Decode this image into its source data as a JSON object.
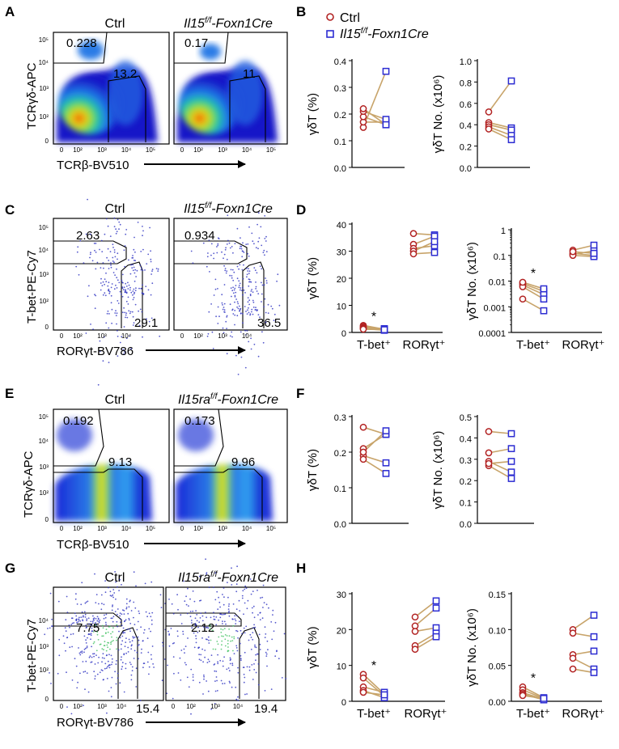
{
  "panels": {
    "A": {
      "letter": "A"
    },
    "B": {
      "letter": "B"
    },
    "C": {
      "letter": "C"
    },
    "D": {
      "letter": "D"
    },
    "E": {
      "letter": "E"
    },
    "F": {
      "letter": "F"
    },
    "G": {
      "letter": "G"
    },
    "H": {
      "letter": "H"
    }
  },
  "legend": {
    "ctrl": "Ctrl",
    "ko_il15_base": "Il15",
    "ko_il15_sup": "f/f",
    "ko_il15_suffix": "-Foxn1Cre",
    "ctrl_color": "#b22222",
    "ko_color": "#2c2cd2"
  },
  "flow": {
    "ctrl_title": "Ctrl",
    "ko15_base": "Il15",
    "ko15_sup": "f/f",
    "ko15_suffix": "-Foxn1Cre",
    "ko15ra_base": "Il15ra",
    "ko15ra_sup": "f/f",
    "ko15ra_suffix": "-Foxn1Cre",
    "ticks": [
      "0",
      "10²",
      "10³",
      "10⁴",
      "10⁵"
    ],
    "tcrgd_label": "TCRγδ-APC",
    "tcrb_label": "TCRβ-BV510",
    "tbet_label": "T-bet-PE-Cy7",
    "rorgt_label": "RORγt-BV786",
    "A_ctrl_gd": "0.228",
    "A_ctrl_b": "13.2",
    "A_ko_gd": "0.17",
    "A_ko_b": "11",
    "C_ctrl_tbet": "2.63",
    "C_ctrl_ror": "29.1",
    "C_ko_tbet": "0.934",
    "C_ko_ror": "36.5",
    "E_ctrl_gd": "0.192",
    "E_ctrl_b": "9.13",
    "E_ko_gd": "0.173",
    "E_ko_b": "9.96",
    "G_ctrl_tbet": "7.75",
    "G_ctrl_ror": "15.4",
    "G_ko_tbet": "2.12",
    "G_ko_ror": "19.4"
  },
  "chart_data": [
    {
      "id": "B1",
      "type": "scatter",
      "ylabel": "γδT (%)",
      "ylim": [
        0,
        0.4
      ],
      "yticks": [
        "0.0",
        "0.1",
        "0.2",
        "0.3",
        "0.4"
      ],
      "pairs": [
        [
          0.15,
          0.36
        ],
        [
          0.17,
          0.17
        ],
        [
          0.19,
          0.16
        ],
        [
          0.21,
          0.18
        ],
        [
          0.22,
          0.16
        ]
      ]
    },
    {
      "id": "B2",
      "type": "scatter",
      "ylabel": "γδT No. (x10⁶)",
      "ylim": [
        0,
        1.0
      ],
      "yticks": [
        "0.0",
        "0.2",
        "0.4",
        "0.6",
        "0.8",
        "1.0"
      ],
      "pairs": [
        [
          0.52,
          0.81
        ],
        [
          0.42,
          0.37
        ],
        [
          0.4,
          0.35
        ],
        [
          0.38,
          0.3
        ],
        [
          0.36,
          0.26
        ]
      ]
    },
    {
      "id": "D1",
      "type": "scatter",
      "ylabel": "γδT (%)",
      "ylim": [
        0,
        40
      ],
      "yticks": [
        "0",
        "10",
        "20",
        "30",
        "40"
      ],
      "categories": [
        "T-bet⁺",
        "RORγt⁺"
      ],
      "annotation": "*",
      "groups": [
        {
          "pairs": [
            [
              2.6,
              1.2
            ],
            [
              2.2,
              0.9
            ],
            [
              1.8,
              1.4
            ],
            [
              1.5,
              0.8
            ],
            [
              1.2,
              1.0
            ]
          ]
        },
        {
          "pairs": [
            [
              36.5,
              36.0
            ],
            [
              32.5,
              35.5
            ],
            [
              31.0,
              32.0
            ],
            [
              30.0,
              33.5
            ],
            [
              29.0,
              29.5
            ]
          ]
        }
      ]
    },
    {
      "id": "D2",
      "type": "scatter",
      "ylabel": "γδT No. (x10⁶)",
      "yscale": "log",
      "ylim": [
        0.0001,
        1
      ],
      "yticks": [
        "0.0001",
        "0.001",
        "0.01",
        "0.1",
        "1"
      ],
      "categories": [
        "T-bet⁺",
        "RORγt⁺"
      ],
      "annotation": "*",
      "groups": [
        {
          "pairs": [
            [
              0.008,
              0.004
            ],
            [
              0.007,
              0.003
            ],
            [
              0.006,
              0.002
            ],
            [
              0.002,
              0.0007
            ],
            [
              0.009,
              0.005
            ]
          ]
        },
        {
          "pairs": [
            [
              0.16,
              0.25
            ],
            [
              0.12,
              0.1
            ],
            [
              0.11,
              0.15
            ],
            [
              0.1,
              0.09
            ],
            [
              0.14,
              0.12
            ]
          ]
        }
      ]
    },
    {
      "id": "F1",
      "type": "scatter",
      "ylabel": "γδT (%)",
      "ylim": [
        0,
        0.3
      ],
      "yticks": [
        "0.0",
        "0.1",
        "0.2",
        "0.3"
      ],
      "pairs": [
        [
          0.27,
          0.25
        ],
        [
          0.21,
          0.25
        ],
        [
          0.19,
          0.17
        ],
        [
          0.18,
          0.14
        ],
        [
          0.2,
          0.26
        ]
      ]
    },
    {
      "id": "F2",
      "type": "scatter",
      "ylabel": "γδT No. (x10⁶)",
      "ylim": [
        0,
        0.5
      ],
      "yticks": [
        "0.0",
        "0.1",
        "0.2",
        "0.3",
        "0.4",
        "0.5"
      ],
      "pairs": [
        [
          0.43,
          0.42
        ],
        [
          0.33,
          0.35
        ],
        [
          0.29,
          0.24
        ],
        [
          0.27,
          0.21
        ],
        [
          0.28,
          0.29
        ]
      ]
    },
    {
      "id": "H1",
      "type": "scatter",
      "ylabel": "γδT (%)",
      "ylim": [
        0,
        30
      ],
      "yticks": [
        "0",
        "10",
        "20",
        "30"
      ],
      "categories": [
        "T-bet⁺",
        "RORγt⁺"
      ],
      "annotation": "*",
      "groups": [
        {
          "pairs": [
            [
              7.5,
              2.0
            ],
            [
              6.5,
              1.5
            ],
            [
              4.0,
              2.5
            ],
            [
              3.0,
              1.0
            ],
            [
              2.5,
              1.8
            ]
          ]
        },
        {
          "pairs": [
            [
              23.5,
              28.0
            ],
            [
              21.0,
              26.0
            ],
            [
              19.5,
              20.5
            ],
            [
              15.5,
              19.0
            ],
            [
              14.5,
              18.0
            ]
          ]
        }
      ]
    },
    {
      "id": "H2",
      "type": "scatter",
      "ylabel": "γδT No. (x10⁶)",
      "ylim": [
        0,
        0.15
      ],
      "yticks": [
        "0.00",
        "0.05",
        "0.10",
        "0.15"
      ],
      "categories": [
        "T-bet⁺",
        "RORγt⁺"
      ],
      "annotation": "*",
      "groups": [
        {
          "pairs": [
            [
              0.02,
              0.005
            ],
            [
              0.016,
              0.004
            ],
            [
              0.012,
              0.003
            ],
            [
              0.01,
              0.002
            ],
            [
              0.008,
              0.004
            ]
          ]
        },
        {
          "pairs": [
            [
              0.1,
              0.12
            ],
            [
              0.095,
              0.09
            ],
            [
              0.065,
              0.07
            ],
            [
              0.06,
              0.045
            ],
            [
              0.045,
              0.04
            ]
          ]
        }
      ]
    }
  ]
}
